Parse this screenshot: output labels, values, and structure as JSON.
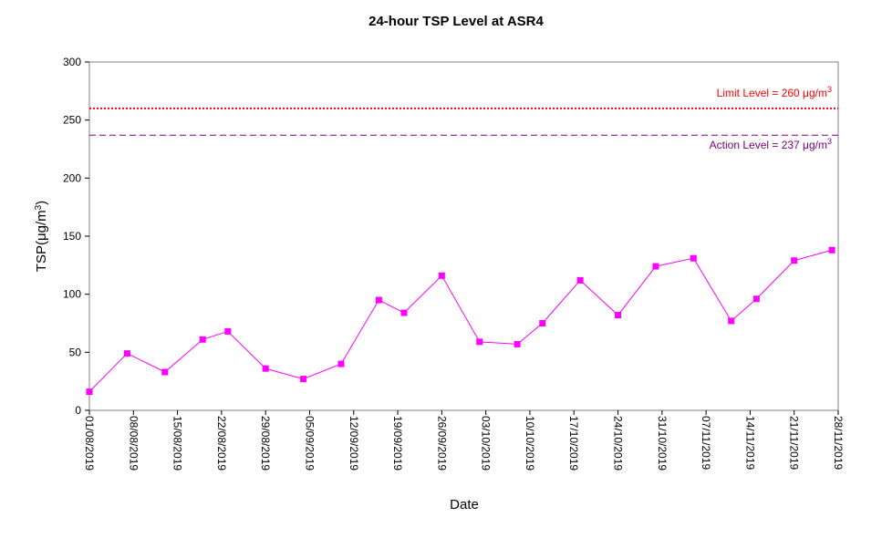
{
  "chart_data": {
    "type": "line",
    "title": "24-hour TSP Level at ASR4",
    "xlabel": "Date",
    "ylabel": "TSP(μg/m3)",
    "ylim": [
      0,
      300
    ],
    "yticks": [
      0,
      50,
      100,
      150,
      200,
      250,
      300
    ],
    "grid": false,
    "x_tick_labels": [
      "01/08/2019",
      "08/08/2019",
      "15/08/2019",
      "22/08/2019",
      "29/08/2019",
      "05/09/2019",
      "12/09/2019",
      "19/09/2019",
      "26/09/2019",
      "03/10/2019",
      "10/10/2019",
      "17/10/2019",
      "24/10/2019",
      "31/10/2019",
      "07/11/2019",
      "14/11/2019",
      "21/11/2019",
      "28/11/2019"
    ],
    "series": [
      {
        "color": "#ff00ff",
        "marker": "square",
        "x": [
          "01/08/2019",
          "07/08/2019",
          "13/08/2019",
          "19/08/2019",
          "23/08/2019",
          "29/08/2019",
          "04/09/2019",
          "10/09/2019",
          "16/09/2019",
          "20/09/2019",
          "26/09/2019",
          "02/10/2019",
          "08/10/2019",
          "12/10/2019",
          "18/10/2019",
          "24/10/2019",
          "30/10/2019",
          "05/11/2019",
          "11/11/2019",
          "15/11/2019",
          "21/11/2019",
          "27/11/2019"
        ],
        "values": [
          16,
          49,
          33,
          61,
          68,
          36,
          27,
          40,
          95,
          84,
          116,
          59,
          57,
          75,
          112,
          82,
          124,
          131,
          77,
          96,
          129,
          138
        ]
      }
    ],
    "reference_lines": [
      {
        "label": "Limit Level  = 260",
        "unit": "μg/m",
        "unit_sup": "3",
        "value": 260,
        "color": "#ff0000",
        "style": "dotted"
      },
      {
        "label": "Action Level  = 237",
        "unit": "μg/m",
        "unit_sup": "3",
        "value": 237,
        "color": "#800080",
        "style": "dashed"
      }
    ]
  }
}
